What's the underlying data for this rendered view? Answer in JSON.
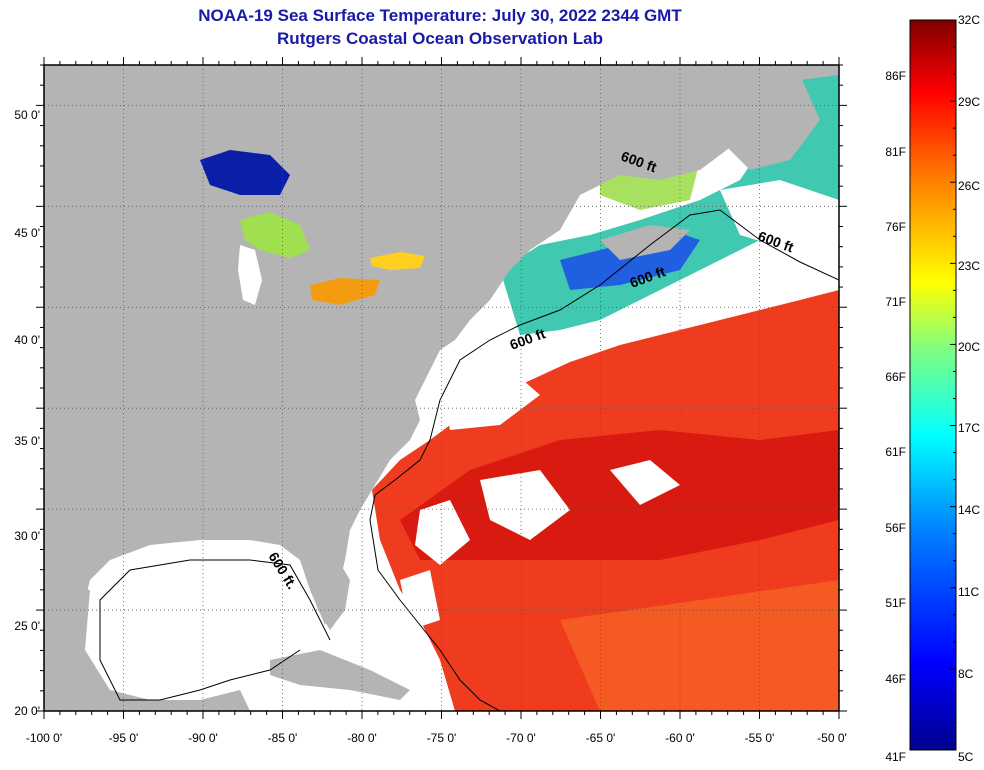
{
  "title": "NOAA-19 Sea Surface Temperature:  July 30, 2022 2344 GMT",
  "subtitle": "Rutgers Coastal Ocean Observation Lab",
  "map": {
    "lon_range": [
      -100,
      -50
    ],
    "lat_range": [
      20,
      52
    ],
    "lon_ticks": [
      "-100 0'",
      "-95 0'",
      "-90 0'",
      "-85 0'",
      "-80 0'",
      "-75 0'",
      "-70 0'",
      "-65 0'",
      "-60 0'",
      "-55 0'",
      "-50 0'"
    ],
    "lat_ticks": [
      "20 0'",
      "25 0'",
      "30 0'",
      "35 0'",
      "40 0'",
      "45 0'",
      "50 0'"
    ],
    "isobath_label": "600 ft.",
    "isobath_labels": [
      "600 ft",
      "600 ft",
      "600 ft",
      "600 ft",
      "600 ft."
    ],
    "colors": {
      "land": "#b4b4b4",
      "no_data": "#ffffff",
      "warm_water": "#f03c1e",
      "hot_water": "#d81a10"
    }
  },
  "colorbar": {
    "min_c": 5,
    "max_c": 32,
    "celsius_labels": [
      "32C",
      "29C",
      "26C",
      "23C",
      "20C",
      "17C",
      "14C",
      "11C",
      "8C",
      "5C"
    ],
    "fahrenheit_labels": [
      "86F",
      "81F",
      "76F",
      "71F",
      "66F",
      "61F",
      "56F",
      "51F",
      "46F",
      "41F"
    ],
    "stops": [
      "#00008f",
      "#0000ff",
      "#0080ff",
      "#00ffff",
      "#80ff80",
      "#ffff00",
      "#ff8000",
      "#ff0000",
      "#800000"
    ]
  }
}
